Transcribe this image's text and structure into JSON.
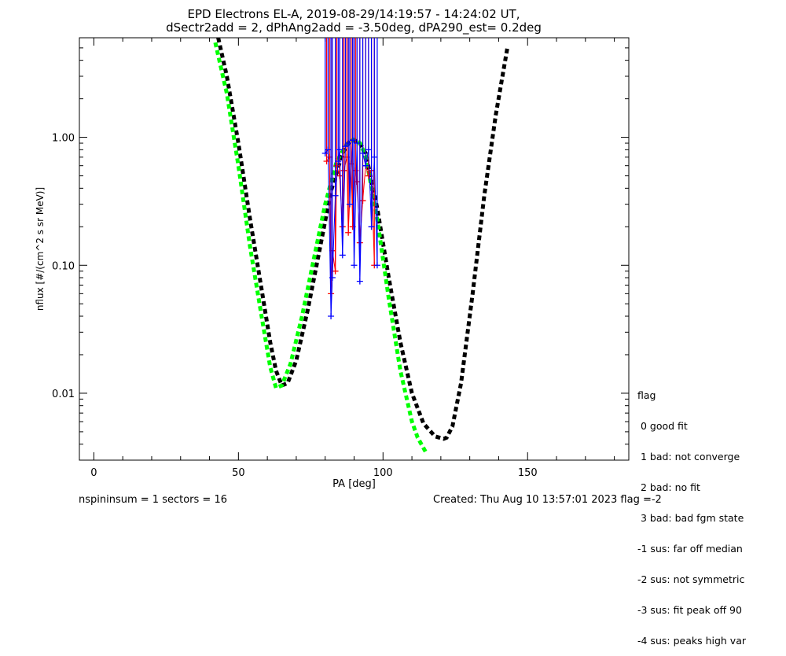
{
  "chart_data": {
    "type": "scatter",
    "title": "EPD Electrons EL-A, 2019-08-29/14:19:57 - 14:24:02 UT,",
    "subtitle": "dSectr2add = 2, dPhAng2add = -3.50deg, dPA290_est=   0.2deg",
    "xlabel": "PA [deg]",
    "ylabel": "nflux [#/(cm^2 s sr MeV)]",
    "xlim": [
      -5,
      185
    ],
    "ylim": [
      0.003,
      6.0
    ],
    "yscale": "log",
    "xticks": [
      0,
      50,
      100,
      150
    ],
    "xtick_labels": [
      "0",
      "50",
      "100",
      "150"
    ],
    "yticks": [
      0.01,
      0.1,
      1.0
    ],
    "ytick_labels": [
      "0.01",
      "0.10",
      "1.00"
    ],
    "colors": {
      "fit_black": "#000000",
      "fit_green": "#00ff00",
      "data_red": "#ff0000",
      "data_blue": "#0000ff",
      "axis": "#000000"
    },
    "series": [
      {
        "name": "fit-black",
        "style": "dashed",
        "x": [
          43,
          46,
          50,
          54,
          58,
          61,
          63,
          65,
          67,
          70,
          74,
          78,
          82,
          86,
          88,
          90,
          92,
          94,
          98,
          102,
          106,
          110,
          114,
          118,
          121,
          122,
          124,
          127,
          131,
          135,
          139,
          143
        ],
        "y": [
          6.0,
          3.0,
          0.9,
          0.23,
          0.065,
          0.025,
          0.015,
          0.0115,
          0.012,
          0.018,
          0.045,
          0.13,
          0.38,
          0.75,
          0.9,
          0.95,
          0.9,
          0.75,
          0.28,
          0.08,
          0.025,
          0.01,
          0.0058,
          0.0046,
          0.0044,
          0.0045,
          0.0055,
          0.012,
          0.06,
          0.35,
          1.5,
          5.0
        ]
      },
      {
        "name": "fit-green",
        "style": "dashed",
        "x": [
          42,
          46,
          50,
          54,
          58,
          61,
          63,
          65,
          68,
          72,
          76,
          80,
          84,
          88,
          90,
          92,
          94,
          98,
          102,
          106,
          110,
          112,
          115
        ],
        "y": [
          5.5,
          2.2,
          0.6,
          0.14,
          0.04,
          0.016,
          0.011,
          0.0115,
          0.017,
          0.04,
          0.11,
          0.3,
          0.65,
          0.92,
          0.96,
          0.9,
          0.72,
          0.23,
          0.055,
          0.015,
          0.006,
          0.0045,
          0.0034
        ]
      },
      {
        "name": "data-red",
        "style": "markers",
        "x": [
          80.5,
          81.5,
          82,
          82.5,
          83.5,
          84,
          85,
          86,
          86.5,
          87.5,
          88,
          89,
          89.5,
          90.5,
          91,
          92,
          93,
          94,
          95,
          96,
          97
        ],
        "y": [
          0.65,
          0.7,
          0.06,
          0.13,
          0.09,
          0.6,
          0.5,
          0.2,
          0.55,
          0.7,
          0.18,
          0.62,
          0.2,
          0.55,
          0.45,
          0.15,
          0.32,
          0.6,
          0.5,
          0.55,
          0.1
        ]
      },
      {
        "name": "data-blue",
        "style": "markers",
        "x": [
          80,
          81,
          82,
          82.5,
          83.5,
          84.5,
          85,
          86,
          87,
          88,
          88.5,
          89.5,
          90,
          91,
          92,
          93,
          94,
          95,
          96,
          97,
          98
        ],
        "y": [
          0.75,
          0.8,
          0.04,
          0.08,
          0.35,
          0.65,
          0.8,
          0.12,
          0.85,
          0.9,
          0.3,
          0.95,
          0.1,
          0.9,
          0.075,
          0.75,
          0.6,
          0.8,
          0.2,
          0.7,
          0.1
        ]
      }
    ],
    "legend": {
      "title": "flag",
      "entries": [
        " 0 good fit",
        " 1 bad: not converge",
        " 2 bad: no fit",
        " 3 bad: bad fgm state",
        "-1 sus: far off median",
        "-2 sus: not symmetric",
        "-3 sus: fit peak off 90",
        "-4 sus: peaks high var"
      ]
    }
  },
  "footer": {
    "left": "nspininsum =  1  sectors = 16",
    "right": "Created: Thu Aug 10 13:57:01 2023    flag =-2"
  }
}
